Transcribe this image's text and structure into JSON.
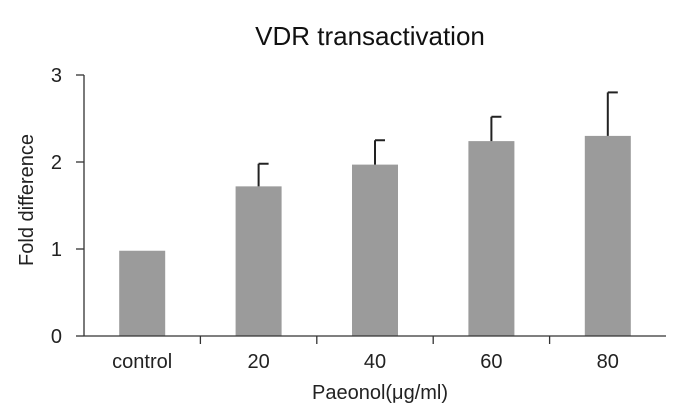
{
  "chart_data": {
    "type": "bar",
    "title": "VDR transactivation",
    "xlabel": "Paeonol(μg/ml)",
    "ylabel": "Fold difference",
    "categories": [
      "control",
      "20",
      "40",
      "60",
      "80"
    ],
    "values": [
      0.98,
      1.72,
      1.97,
      2.24,
      2.3
    ],
    "errors": [
      0.0,
      0.26,
      0.28,
      0.28,
      0.5
    ],
    "ylim": [
      0,
      3
    ],
    "yticks": [
      0,
      1,
      2,
      3
    ],
    "yticklabels": [
      "0",
      "1",
      "2",
      "3"
    ],
    "grid": false,
    "bar_color": "#9b9b9b"
  }
}
